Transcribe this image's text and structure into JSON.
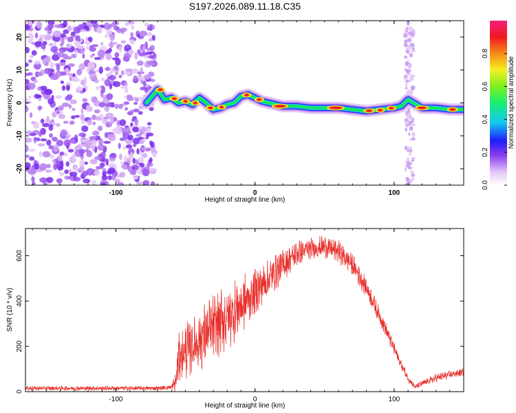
{
  "page": {
    "title": "S197.2026.089.11.18.C35"
  },
  "chart_data": [
    {
      "type": "heatmap",
      "name": "spectrogram",
      "xlabel": "Height of straight line (km)",
      "ylabel": "Frequency (Hz)",
      "xlim": [
        -165,
        150
      ],
      "ylim": [
        -25,
        25
      ],
      "xticks": [
        -100,
        0,
        100
      ],
      "yticks": [
        -20,
        -10,
        0,
        10,
        20
      ],
      "noise_region_x": [
        -165,
        -72
      ],
      "ridge": {
        "x": [
          -78,
          -70,
          -65,
          -60,
          -55,
          -50,
          -45,
          -40,
          -35,
          -30,
          -25,
          -20,
          -15,
          -10,
          -5,
          0,
          5,
          10,
          20,
          30,
          40,
          50,
          60,
          70,
          80,
          90,
          100,
          105,
          110,
          120,
          130,
          140,
          150
        ],
        "y": [
          0,
          4,
          1,
          1.5,
          0,
          0.5,
          -0.5,
          1.5,
          0,
          -2,
          -1.5,
          -0.5,
          0,
          2,
          2.5,
          1.5,
          0.5,
          0,
          -1,
          -1,
          -1.5,
          -1.5,
          -1.5,
          -2,
          -2.5,
          -2,
          -1.5,
          -1,
          1,
          -1.5,
          -1.5,
          -2,
          -2
        ]
      },
      "colorbar": {
        "label": "Normalized spectral amplitude",
        "ticks": [
          0.0,
          0.2,
          0.4,
          0.6,
          0.8
        ],
        "range": [
          0,
          1
        ]
      }
    },
    {
      "type": "line",
      "name": "snr",
      "xlabel": "Height of straight line (km)",
      "ylabel": "SNR (10 * v/v)",
      "xlim": [
        -165,
        150
      ],
      "ylim": [
        0,
        720
      ],
      "xticks": [
        -100,
        0,
        100
      ],
      "yticks": [
        0,
        200,
        400,
        600
      ],
      "color": "#e8322e",
      "envelope": {
        "x": [
          -165,
          -100,
          -70,
          -60,
          -57,
          -55,
          -50,
          -40,
          -30,
          -20,
          -10,
          0,
          10,
          20,
          30,
          40,
          50,
          60,
          70,
          80,
          90,
          100,
          105,
          110,
          115,
          120,
          130,
          140,
          150
        ],
        "base": [
          15,
          15,
          15,
          20,
          40,
          150,
          180,
          230,
          280,
          330,
          380,
          440,
          500,
          560,
          610,
          630,
          640,
          620,
          560,
          460,
          330,
          190,
          120,
          60,
          20,
          35,
          60,
          75,
          85
        ],
        "amp": [
          8,
          8,
          8,
          10,
          40,
          90,
          100,
          110,
          120,
          120,
          110,
          90,
          70,
          60,
          45,
          40,
          40,
          40,
          40,
          35,
          30,
          25,
          20,
          15,
          8,
          12,
          15,
          15,
          15
        ]
      }
    }
  ]
}
